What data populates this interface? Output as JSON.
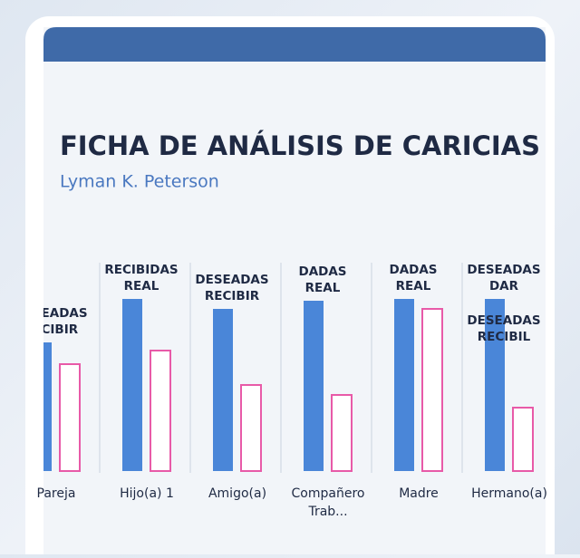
{
  "chart_data": {
    "type": "bar",
    "title": "FICHA DE ANÁLISIS DE CARICIAS",
    "subtitle": "Lyman K. Peterson",
    "categories": [
      "Pareja",
      "Hijo(a) 1",
      "Amigo(a)",
      "Compañero Trab...",
      "Madre",
      "Hermano(a)"
    ],
    "column_labels": [
      [
        [
          "DESEADAS",
          "RECIBIR"
        ]
      ],
      [
        [
          "RECIBIDAS",
          "REAL"
        ]
      ],
      [
        [
          "DESEADAS",
          "RECIBIR"
        ]
      ],
      [
        [
          "DADAS",
          "REAL"
        ]
      ],
      [
        [
          "DADAS",
          "REAL"
        ]
      ],
      [
        [
          "DESEADAS",
          "DAR"
        ],
        [
          "DESEADAS",
          "RECIBIL"
        ]
      ]
    ],
    "series": [
      {
        "color": "#4a86d8",
        "values": [
          142,
          190,
          179,
          188,
          190,
          190
        ]
      },
      {
        "color": "#e85aa8",
        "values": [
          118,
          133,
          95,
          84,
          179,
          70
        ]
      }
    ],
    "ylim": [
      0,
      200
    ]
  }
}
